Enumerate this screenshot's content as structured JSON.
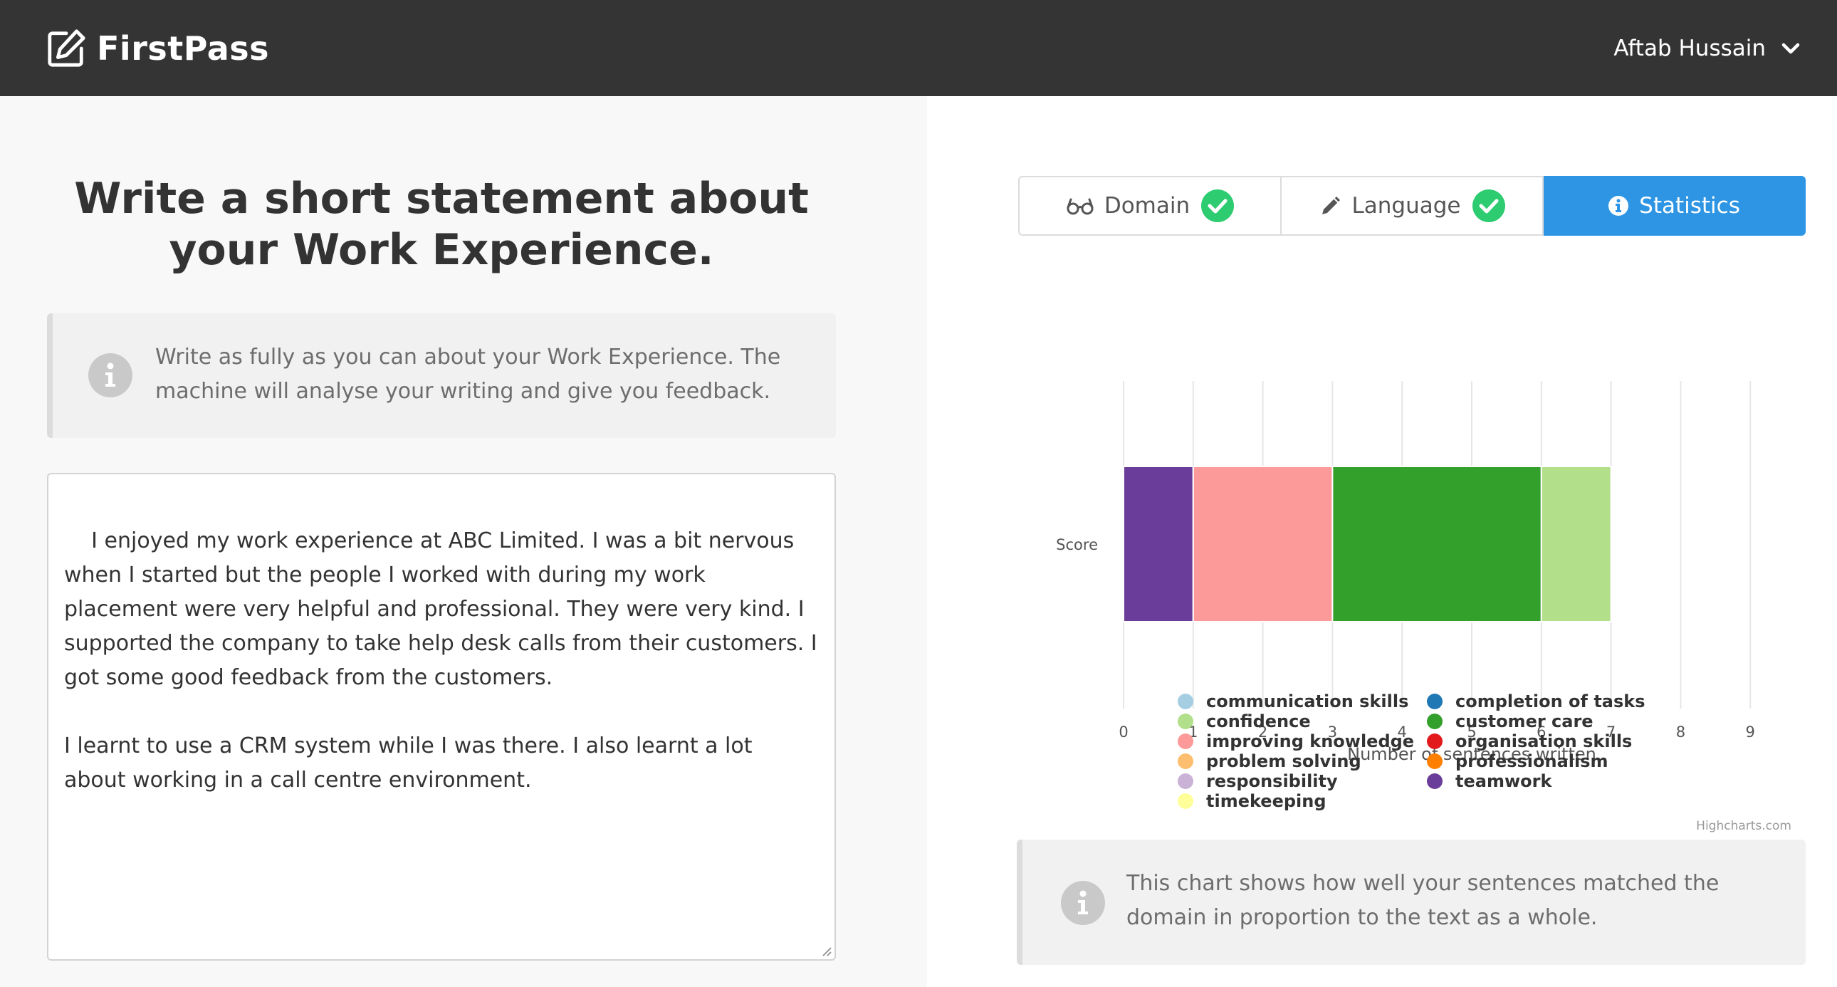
{
  "app": {
    "name": "FirstPass"
  },
  "header": {
    "user_name": "Aftab Hussain"
  },
  "left_panel": {
    "title": "Write a short statement about your Work Experience.",
    "info": "Write as fully as you can about your Work Experience. The machine will analyse your writing and give you feedback.",
    "essay": "I enjoyed my work experience at ABC Limited. I was a bit nervous when I started but the people I worked with during my work placement were very helpful and professional. They were very kind. I supported the company to take help desk calls from their customers. I got some good feedback from the customers.\n\nI learnt to use a CRM system while I was there. I also learnt a lot about working in a call centre environment."
  },
  "tabs": [
    {
      "label": "Domain",
      "icon": "glasses-icon",
      "checked": true
    },
    {
      "label": "Language",
      "icon": "pencil-icon",
      "checked": true
    },
    {
      "label": "Statistics",
      "icon": "info-icon",
      "active": true
    }
  ],
  "chart_data": {
    "type": "bar",
    "orientation": "horizontal",
    "stacked": true,
    "categories": [
      "Score"
    ],
    "xlabel": "Number of sentences written",
    "xlim": [
      0,
      10
    ],
    "xticks": [
      "0",
      "1",
      "2",
      "3",
      "4",
      "5",
      "6",
      "7",
      "8",
      "9",
      "10"
    ],
    "grid": true,
    "legend_position": "bottom",
    "series": [
      {
        "name": "teamwork",
        "values": [
          1
        ],
        "color": "#6a3d9a"
      },
      {
        "name": "improving knowledge",
        "values": [
          2
        ],
        "color": "#fb9a99"
      },
      {
        "name": "customer care",
        "values": [
          3
        ],
        "color": "#33a02c"
      },
      {
        "name": "confidence",
        "values": [
          1
        ],
        "color": "#b2df8a"
      }
    ],
    "legend": {
      "columns": [
        [
          {
            "name": "communication skills",
            "color": "#a6cee3"
          },
          {
            "name": "confidence",
            "color": "#b2df8a"
          },
          {
            "name": "improving knowledge",
            "color": "#fb9a99"
          },
          {
            "name": "problem solving",
            "color": "#fdbf6f"
          },
          {
            "name": "responsibility",
            "color": "#cab2d6"
          },
          {
            "name": "timekeeping",
            "color": "#ffff99"
          }
        ],
        [
          {
            "name": "completion of tasks",
            "color": "#1f78b4"
          },
          {
            "name": "customer care",
            "color": "#33a02c"
          },
          {
            "name": "organisation skills",
            "color": "#e31a1c"
          },
          {
            "name": "professionalism",
            "color": "#ff7f00"
          },
          {
            "name": "teamwork",
            "color": "#6a3d9a"
          }
        ]
      ]
    },
    "credits": "Highcharts.com"
  },
  "right_panel": {
    "info": "This chart shows how well your sentences matched the domain in proportion to the text as a whole."
  }
}
